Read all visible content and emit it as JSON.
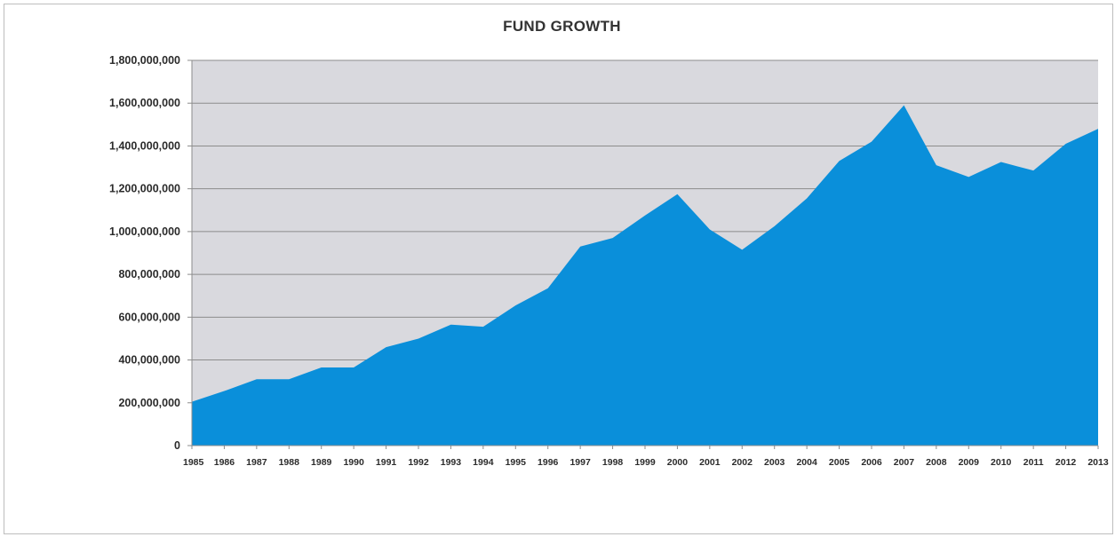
{
  "chart_data": {
    "type": "area",
    "title": "FUND GROWTH",
    "xlabel": "",
    "ylabel": "",
    "ylim": [
      0,
      1800000000
    ],
    "ytick_values": [
      0,
      200000000,
      400000000,
      600000000,
      800000000,
      1000000000,
      1200000000,
      1400000000,
      1600000000,
      1800000000
    ],
    "ytick_labels": [
      "0",
      "200,000,000",
      "400,000,000",
      "600,000,000",
      "800,000,000",
      "1,000,000,000",
      "1,200,000,000",
      "1,400,000,000",
      "1,600,000,000",
      "1,800,000,000"
    ],
    "categories": [
      "1985",
      "1986",
      "1987",
      "1988",
      "1989",
      "1990",
      "1991",
      "1992",
      "1993",
      "1994",
      "1995",
      "1996",
      "1997",
      "1998",
      "1999",
      "2000",
      "2001",
      "2002",
      "2003",
      "2004",
      "2005",
      "2006",
      "2007",
      "2008",
      "2009",
      "2010",
      "2011",
      "2012",
      "2013"
    ],
    "values": [
      205000000,
      255000000,
      310000000,
      310000000,
      365000000,
      365000000,
      460000000,
      500000000,
      565000000,
      555000000,
      655000000,
      735000000,
      930000000,
      970000000,
      1075000000,
      1175000000,
      1010000000,
      915000000,
      1025000000,
      1155000000,
      1330000000,
      1420000000,
      1590000000,
      1310000000,
      1255000000,
      1325000000,
      1285000000,
      1410000000,
      1480000000
    ],
    "grid": true,
    "colors": {
      "area": "#0a8fda",
      "plot_background": "#d9d9de",
      "gridline": "#8c8c8c",
      "axis": "#8c8c8c"
    }
  }
}
